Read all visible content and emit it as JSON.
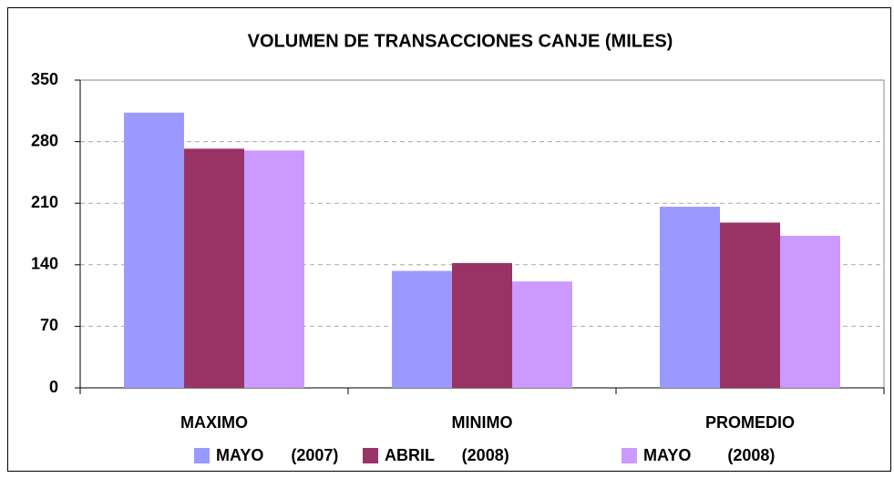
{
  "chart_data": {
    "type": "bar",
    "title": "VOLUMEN DE TRANSACCIONES CANJE (MILES)",
    "categories": [
      "MAXIMO",
      "MINIMO",
      "PROMEDIO"
    ],
    "series": [
      {
        "name": "MAYO      (2007)",
        "color": "#9999ff",
        "values": [
          313,
          133,
          206
        ]
      },
      {
        "name": "ABRIL      (2008)",
        "color": "#993366",
        "values": [
          272,
          142,
          188
        ]
      },
      {
        "name": "MAYO        (2008)",
        "color": "#cc99ff",
        "values": [
          270,
          121,
          173
        ]
      }
    ],
    "ylim": [
      0,
      350
    ],
    "yticks": [
      0,
      70,
      140,
      210,
      280,
      350
    ],
    "grid": true,
    "legend": "bottom"
  }
}
